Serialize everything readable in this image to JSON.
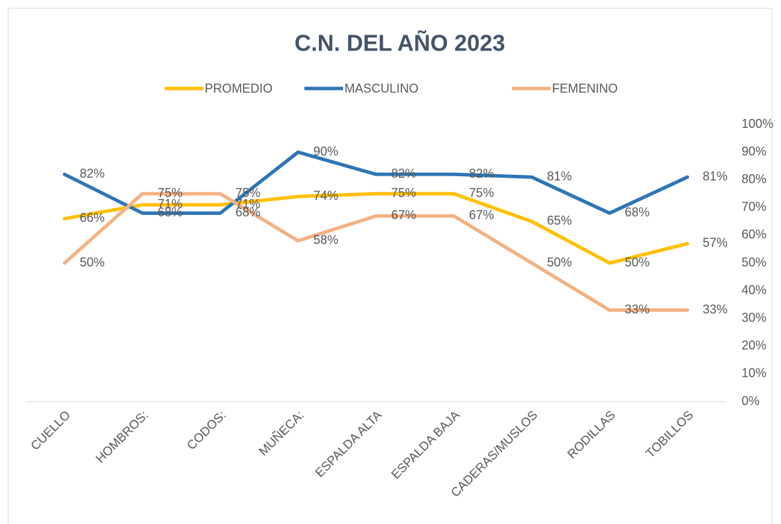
{
  "chart_data": {
    "type": "line",
    "title": "C.N. DEL AÑO 2023",
    "categories": [
      "CUELLO",
      "HOMBROS:",
      "CODOS:",
      "MUÑECA:",
      "ESPALDA ALTA",
      "ESPALDA BAJA",
      "CADERAS/MUSLOS",
      "RODILLAS",
      "TOBILLOS"
    ],
    "series": [
      {
        "name": "PROMEDIO",
        "color": "#FFC000",
        "values": [
          66,
          71,
          71,
          74,
          75,
          75,
          65,
          50,
          57
        ],
        "value_labels": [
          "66%",
          "71%",
          "71%",
          "74%",
          "75%",
          "75%",
          "65%",
          "50%",
          "57%"
        ]
      },
      {
        "name": "MASCULINO",
        "color": "#2E75B6",
        "values": [
          82,
          68,
          68,
          90,
          82,
          82,
          81,
          68,
          81
        ],
        "value_labels": [
          "82%",
          "68%",
          "68%",
          "90%",
          "82%",
          "82%",
          "81%",
          "68%",
          "81%"
        ]
      },
      {
        "name": "FEMENINO",
        "color": "#F4B183",
        "values": [
          50,
          75,
          75,
          58,
          67,
          67,
          50,
          33,
          33
        ],
        "value_labels": [
          "50%",
          "75%",
          "75%",
          "58%",
          "67%",
          "67%",
          "50%",
          "33%",
          "33%"
        ]
      }
    ],
    "ylim": [
      0,
      100
    ],
    "yticks": [
      {
        "value": 0,
        "label": "0%"
      },
      {
        "value": 10,
        "label": "10%"
      },
      {
        "value": 20,
        "label": "20%"
      },
      {
        "value": 30,
        "label": "30%"
      },
      {
        "value": 40,
        "label": "40%"
      },
      {
        "value": 50,
        "label": "50%"
      },
      {
        "value": 60,
        "label": "60%"
      },
      {
        "value": 70,
        "label": "70%"
      },
      {
        "value": 80,
        "label": "80%"
      },
      {
        "value": 90,
        "label": "90%"
      },
      {
        "value": 100,
        "label": "100%"
      }
    ],
    "grid": false,
    "legend": "top"
  }
}
